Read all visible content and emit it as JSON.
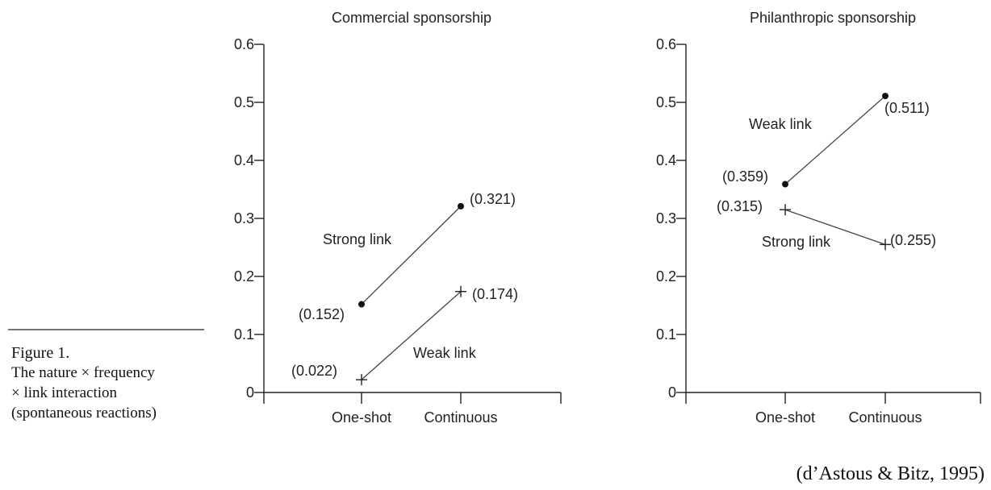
{
  "caption": {
    "title": "Figure 1.",
    "lines": [
      "The nature × frequency",
      "× link interaction",
      "(spontaneous reactions)"
    ]
  },
  "source": "(d’Astous & Bitz, 1995)",
  "chart_data": [
    {
      "type": "line",
      "title": "Commercial sponsorship",
      "categories": [
        "One-shot",
        "Continuous"
      ],
      "ylim": [
        0,
        0.6
      ],
      "yticks": [
        "0",
        "0.1",
        "0.2",
        "0.3",
        "0.4",
        "0.5",
        "0.6"
      ],
      "series": [
        {
          "name": "Strong link",
          "marker": "dot",
          "values": [
            0.152,
            0.321
          ],
          "labels": [
            "(0.152)",
            "(0.321)"
          ]
        },
        {
          "name": "Weak link",
          "marker": "plus",
          "values": [
            0.022,
            0.174
          ],
          "labels": [
            "(0.022)",
            "(0.174)"
          ]
        }
      ]
    },
    {
      "type": "line",
      "title": "Philanthropic sponsorship",
      "categories": [
        "One-shot",
        "Continuous"
      ],
      "ylim": [
        0,
        0.6
      ],
      "yticks": [
        "0",
        "0.1",
        "0.2",
        "0.3",
        "0.4",
        "0.5",
        "0.6"
      ],
      "series": [
        {
          "name": "Weak link",
          "marker": "dot",
          "values": [
            0.359,
            0.511
          ],
          "labels": [
            "(0.359)",
            "(0.511)"
          ]
        },
        {
          "name": "Strong link",
          "marker": "plus",
          "values": [
            0.315,
            0.255
          ],
          "labels": [
            "(0.315)",
            "(0.255)"
          ]
        }
      ]
    }
  ]
}
